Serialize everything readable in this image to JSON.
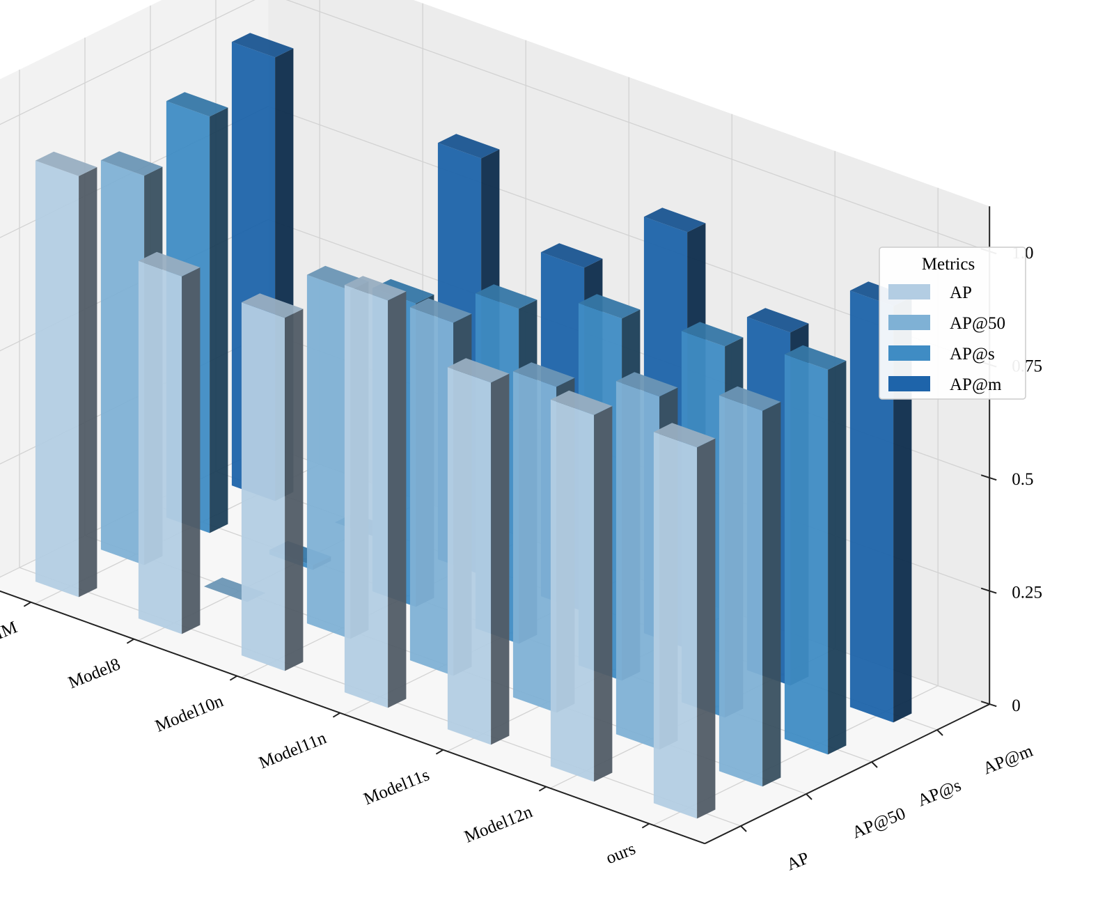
{
  "chart_data": {
    "type": "bar",
    "subtype": "3d-bar",
    "categories": [
      "DEIM",
      "Model8",
      "Model10n",
      "Model11n",
      "Model11s",
      "Model12n",
      "ours"
    ],
    "metrics": [
      "AP",
      "AP@50",
      "AP@s",
      "AP@m"
    ],
    "series": [
      {
        "name": "AP",
        "color": "#b3cde3",
        "values": [
          0.93,
          0.79,
          0.78,
          0.9,
          0.8,
          0.81,
          0.82
        ]
      },
      {
        "name": "AP@50",
        "color": "#7fb1d5",
        "values": [
          0.86,
          0.0,
          0.77,
          0.78,
          0.72,
          0.78,
          0.83
        ]
      },
      {
        "name": "AP@s",
        "color": "#3f8cc4",
        "values": [
          0.92,
          0.01,
          0.67,
          0.74,
          0.8,
          0.82,
          0.85
        ]
      },
      {
        "name": "AP@m",
        "color": "#1e64aa",
        "values": [
          0.98,
          0.0,
          0.92,
          0.76,
          0.92,
          0.78,
          0.92
        ]
      }
    ],
    "zlim": [
      0,
      1.1
    ],
    "ztick_labels": [
      "0",
      "0.25",
      "0.5",
      "0.75",
      "1.0"
    ],
    "ztick_values": [
      0,
      0.25,
      0.5,
      0.75,
      1.0
    ],
    "grid": true,
    "legend": {
      "title": "Metrics",
      "placement": "right"
    }
  }
}
